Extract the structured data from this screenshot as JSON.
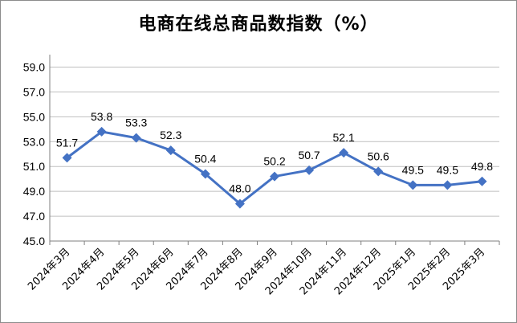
{
  "chart_data": {
    "type": "line",
    "title": "电商在线总商品数指数（%）",
    "categories": [
      "2024年3月",
      "2024年4月",
      "2024年5月",
      "2024年6月",
      "2024年7月",
      "2024年8月",
      "2024年9月",
      "2024年10月",
      "2024年11月",
      "2024年12月",
      "2025年1月",
      "2025年2月",
      "2025年3月"
    ],
    "values": [
      51.7,
      53.8,
      53.3,
      52.3,
      50.4,
      48.0,
      50.2,
      50.7,
      52.1,
      50.6,
      49.5,
      49.5,
      49.8
    ],
    "data_labels": [
      "51.7",
      "53.8",
      "53.3",
      "52.3",
      "50.4",
      "48.0",
      "50.2",
      "50.7",
      "52.1",
      "50.6",
      "49.5",
      "49.5",
      "49.8"
    ],
    "ylim": [
      45.0,
      60.0
    ],
    "yticks": [
      "45.0",
      "47.0",
      "49.0",
      "51.0",
      "53.0",
      "55.0",
      "57.0",
      "59.0"
    ],
    "grid": true,
    "legend": "none",
    "colors": {
      "line": "#4472c4",
      "grid": "#bfbfbf",
      "axis": "#7f7f7f"
    }
  }
}
